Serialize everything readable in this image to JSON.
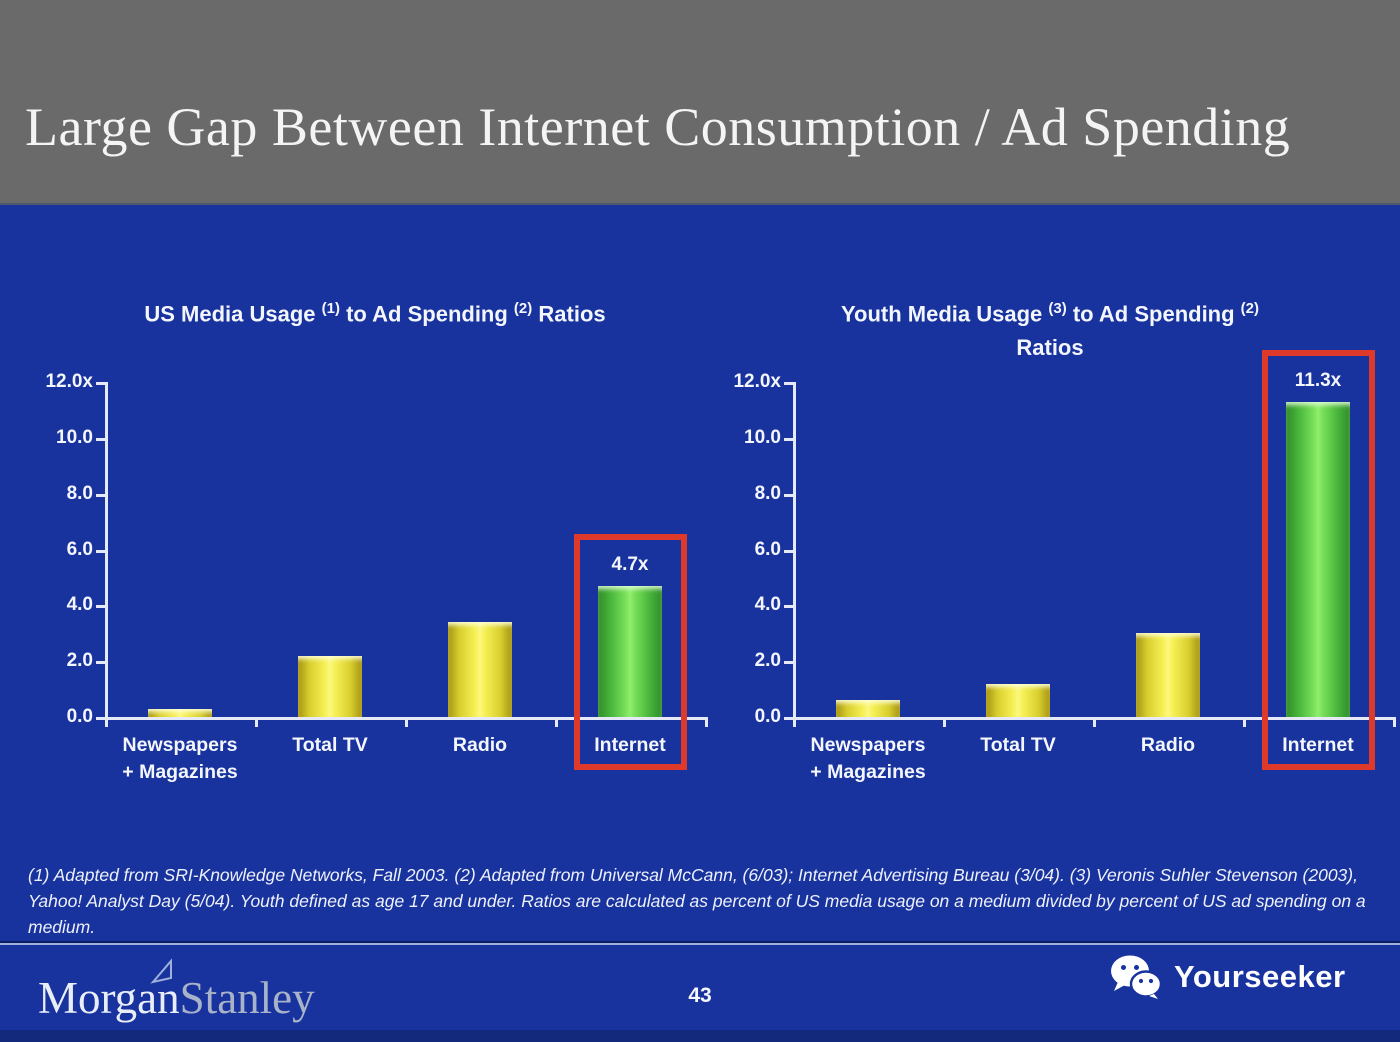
{
  "slide": {
    "title": "Large Gap Between Internet Consumption / Ad Spending",
    "page_number": "43",
    "footnote": "(1) Adapted from SRI-Knowledge Networks, Fall 2003.  (2) Adapted from Universal McCann, (6/03); Internet Advertising Bureau (3/04). (3) Veronis Suhler Stevenson (2003), Yahoo! Analyst Day (5/04).  Youth defined as age 17 and under.  Ratios are calculated as percent of US media usage on a medium divided by percent of US ad spending on a medium.",
    "brand": {
      "left": "Morgan",
      "right": "Stanley"
    },
    "watermark": {
      "label": "Yourseeker",
      "icon": "wechat-icon"
    }
  },
  "colors": {
    "header_gray": "#6A6A6A",
    "background_blue": "#18339E",
    "bar_yellow": "#F6F055",
    "bar_green": "#77DE59",
    "highlight_red": "#DE3A2C",
    "axis_white": "#E6EAF8",
    "footer_strip_blue": "#13297B"
  },
  "chart_data": [
    {
      "type": "bar",
      "title": "US Media Usage (1) to Ad Spending (2) Ratios",
      "title_segments": [
        {
          "text": "US Media Usage "
        },
        {
          "text": "(1)"
        },
        {
          "text": " to Ad Spending "
        },
        {
          "text": "(2)"
        },
        {
          "text": " Ratios"
        }
      ],
      "categories": [
        {
          "key": "newspapers-magazines",
          "lines": [
            "Newspapers",
            "+ Magazines"
          ]
        },
        {
          "key": "total-tv",
          "lines": [
            "Total TV"
          ]
        },
        {
          "key": "radio",
          "lines": [
            "Radio"
          ]
        },
        {
          "key": "internet",
          "lines": [
            "Internet"
          ]
        }
      ],
      "values": [
        0.3,
        2.2,
        3.4,
        4.7
      ],
      "bar_colors": [
        "yellow",
        "yellow",
        "yellow",
        "green"
      ],
      "highlight": {
        "index": 3,
        "label": "4.7x"
      },
      "y_ticks": [
        "12.0x",
        "10.0",
        "8.0",
        "6.0",
        "4.0",
        "2.0",
        "0.0"
      ],
      "ylim": [
        0,
        12
      ],
      "xlabel": "",
      "ylabel": "",
      "grid": false,
      "legend": "none"
    },
    {
      "type": "bar",
      "title": "Youth Media Usage (3) to Ad Spending (2) Ratios",
      "title_segments": [
        {
          "text": "Youth Media Usage "
        },
        {
          "text": "(3)"
        },
        {
          "text": " to Ad Spending "
        },
        {
          "text": "(2)"
        }
      ],
      "title_line2": "Ratios",
      "categories": [
        {
          "key": "newspapers-magazines",
          "lines": [
            "Newspapers",
            "+ Magazines"
          ]
        },
        {
          "key": "total-tv",
          "lines": [
            "Total TV"
          ]
        },
        {
          "key": "radio",
          "lines": [
            "Radio"
          ]
        },
        {
          "key": "internet",
          "lines": [
            "Internet"
          ]
        }
      ],
      "values": [
        0.6,
        1.2,
        3.0,
        11.3
      ],
      "bar_colors": [
        "yellow",
        "yellow",
        "yellow",
        "green"
      ],
      "highlight": {
        "index": 3,
        "label": "11.3x"
      },
      "y_ticks": [
        "12.0x",
        "10.0",
        "8.0",
        "6.0",
        "4.0",
        "2.0",
        "0.0"
      ],
      "ylim": [
        0,
        12
      ],
      "xlabel": "",
      "ylabel": "",
      "grid": false,
      "legend": "none"
    }
  ]
}
